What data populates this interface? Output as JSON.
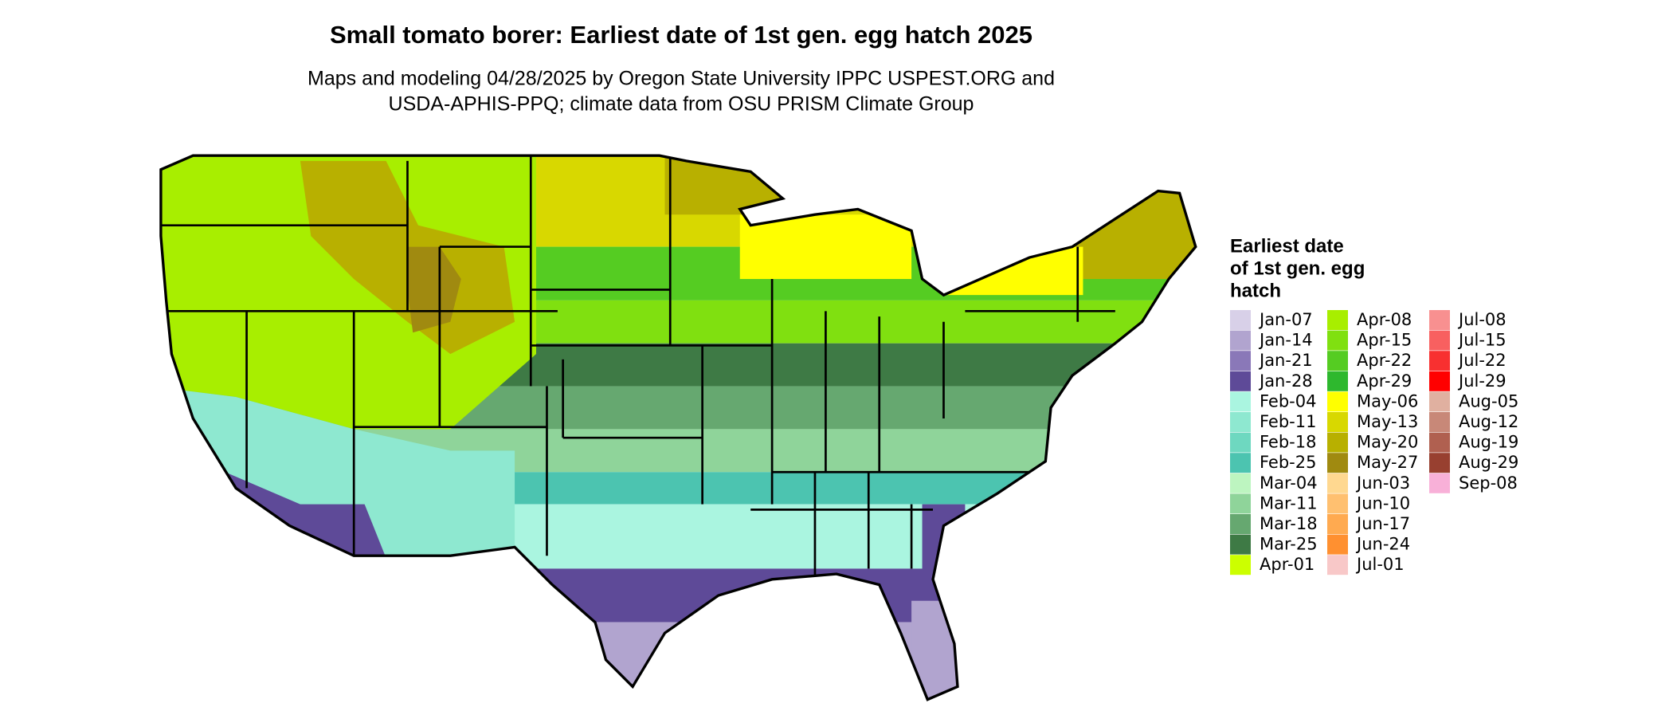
{
  "title": "Small tomato borer: Earliest date of 1st gen. egg hatch 2025",
  "subtitle": [
    "Maps and modeling 04/28/2025 by Oregon State University IPPC USPEST.ORG and",
    "USDA-APHIS-PPQ; climate data from OSU PRISM Climate Group"
  ],
  "legend": {
    "title": [
      "Earliest date",
      "of 1st gen. egg",
      "hatch"
    ],
    "items": [
      {
        "label": "Jan-07",
        "color": "#d8d0e8"
      },
      {
        "label": "Jan-14",
        "color": "#b1a4cf"
      },
      {
        "label": "Jan-21",
        "color": "#8a78b8"
      },
      {
        "label": "Jan-28",
        "color": "#5e4a98"
      },
      {
        "label": "Feb-04",
        "color": "#aaf5e0"
      },
      {
        "label": "Feb-11",
        "color": "#8ee8d0"
      },
      {
        "label": "Feb-18",
        "color": "#6ed8c0"
      },
      {
        "label": "Feb-25",
        "color": "#4cc4b0"
      },
      {
        "label": "Mar-04",
        "color": "#bdf5c0"
      },
      {
        "label": "Mar-11",
        "color": "#8fd49a"
      },
      {
        "label": "Mar-18",
        "color": "#66a870"
      },
      {
        "label": "Mar-25",
        "color": "#3e7a45"
      },
      {
        "label": "Apr-01",
        "color": "#ccff00"
      },
      {
        "label": "Apr-08",
        "color": "#a8ee00"
      },
      {
        "label": "Apr-15",
        "color": "#80e010"
      },
      {
        "label": "Apr-22",
        "color": "#55cc22"
      },
      {
        "label": "Apr-29",
        "color": "#2eb82e"
      },
      {
        "label": "May-06",
        "color": "#ffff00"
      },
      {
        "label": "May-13",
        "color": "#d8d800"
      },
      {
        "label": "May-20",
        "color": "#b8b000"
      },
      {
        "label": "May-27",
        "color": "#a08a10"
      },
      {
        "label": "Jun-03",
        "color": "#ffd890"
      },
      {
        "label": "Jun-10",
        "color": "#ffc070"
      },
      {
        "label": "Jun-17",
        "color": "#ffaa50"
      },
      {
        "label": "Jun-24",
        "color": "#ff9030"
      },
      {
        "label": "Jul-01",
        "color": "#f8c8c8"
      },
      {
        "label": "Jul-08",
        "color": "#f89090"
      },
      {
        "label": "Jul-15",
        "color": "#f86060"
      },
      {
        "label": "Jul-22",
        "color": "#f83030"
      },
      {
        "label": "Jul-29",
        "color": "#ff0000"
      },
      {
        "label": "Aug-05",
        "color": "#e0b0a0"
      },
      {
        "label": "Aug-12",
        "color": "#c88878"
      },
      {
        "label": "Aug-19",
        "color": "#b06050"
      },
      {
        "label": "Aug-29",
        "color": "#984030"
      },
      {
        "label": "Sep-08",
        "color": "#f8b0d8"
      }
    ]
  }
}
